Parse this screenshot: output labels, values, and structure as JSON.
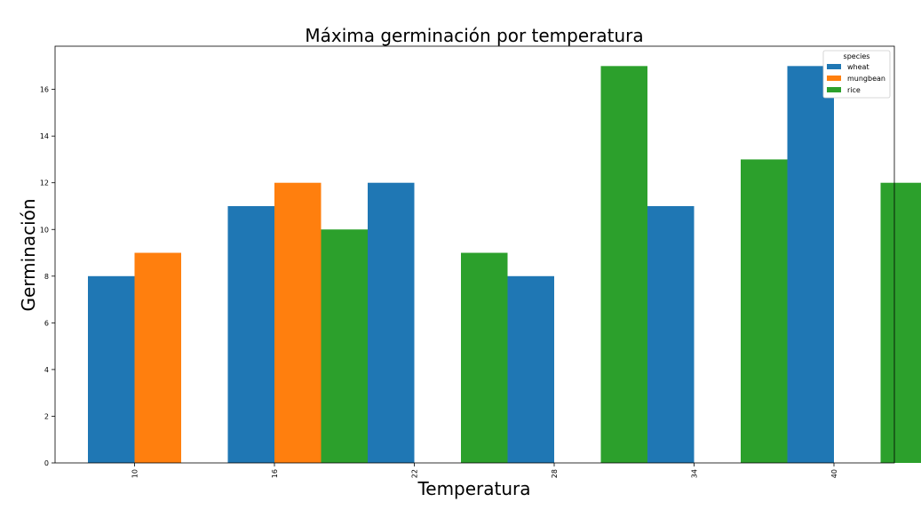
{
  "chart_data": {
    "type": "bar",
    "title": "Máxima germinación por temperatura",
    "xlabel": "Temperatura",
    "ylabel": "Germinación",
    "categories": [
      "10",
      "16",
      "22",
      "28",
      "34",
      "40"
    ],
    "series": [
      {
        "name": "wheat",
        "color": "#1f77b4",
        "values": [
          8,
          11,
          12,
          8,
          11,
          17
        ]
      },
      {
        "name": "mungbean",
        "color": "#ff7f0e",
        "values": [
          9,
          12,
          null,
          null,
          null,
          null
        ]
      },
      {
        "name": "rice",
        "color": "#2ca02c",
        "values": [
          null,
          10,
          9,
          17,
          13,
          12
        ]
      }
    ],
    "ylim": [
      0,
      17.85
    ],
    "yticks": [
      0,
      2,
      4,
      6,
      8,
      10,
      12,
      14,
      16
    ],
    "legend": {
      "title": "species",
      "placement": "top-right"
    },
    "grid": false
  }
}
